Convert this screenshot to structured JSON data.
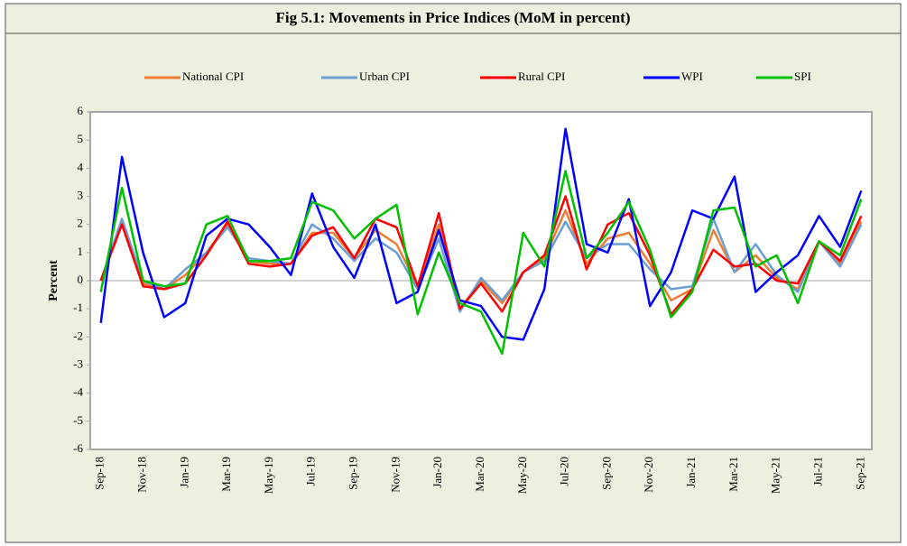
{
  "chart_data": {
    "type": "line",
    "title": "Fig 5.1: Movements in Price Indices (MoM in percent)",
    "y_label": "Percent",
    "categories": [
      "Sep-18",
      null,
      "Nov-18",
      null,
      "Jan-19",
      null,
      "Mar-19",
      null,
      "May-19",
      null,
      "Jul-19",
      null,
      "Sep-19",
      null,
      "Nov-19",
      null,
      "Jan-20",
      null,
      "Mar-20",
      null,
      "May-20",
      null,
      "Jul-20",
      null,
      "Sep-20",
      null,
      "Nov-20",
      null,
      "Jan-21",
      null,
      "Mar-21",
      null,
      "May-21",
      null,
      "Jul-21",
      null,
      "Sep-21"
    ],
    "series": [
      {
        "name": "National CPI",
        "color": "#ed7d31",
        "values": [
          0.0,
          2.1,
          -0.1,
          -0.3,
          0.2,
          1.0,
          2.0,
          0.7,
          0.6,
          0.6,
          1.7,
          1.7,
          0.8,
          1.8,
          1.3,
          -0.2,
          2.0,
          -1.0,
          0.0,
          -0.8,
          0.3,
          0.8,
          2.5,
          0.6,
          1.5,
          1.7,
          0.6,
          -0.7,
          -0.3,
          1.8,
          0.3,
          0.9,
          0.1,
          -0.3,
          1.4,
          0.6,
          2.1
        ]
      },
      {
        "name": "Urban CPI",
        "color": "#6b9fd4",
        "values": [
          0.0,
          2.2,
          0.0,
          -0.3,
          0.4,
          1.0,
          1.9,
          0.8,
          0.7,
          0.6,
          2.0,
          1.5,
          0.7,
          1.5,
          1.0,
          -0.3,
          1.5,
          -1.1,
          0.1,
          -0.7,
          0.3,
          0.7,
          2.1,
          0.8,
          1.3,
          1.3,
          0.4,
          -0.3,
          -0.2,
          2.2,
          0.3,
          1.3,
          0.2,
          -0.4,
          1.4,
          0.5,
          2.0
        ]
      },
      {
        "name": "Rural CPI",
        "color": "#ff0000",
        "values": [
          0.0,
          2.0,
          -0.2,
          -0.3,
          -0.1,
          0.9,
          2.1,
          0.6,
          0.5,
          0.6,
          1.6,
          1.9,
          0.8,
          2.2,
          1.9,
          -0.2,
          2.4,
          -1.0,
          -0.1,
          -1.1,
          0.3,
          0.9,
          3.0,
          0.4,
          2.0,
          2.4,
          0.9,
          -1.2,
          -0.3,
          1.1,
          0.5,
          0.6,
          0.0,
          -0.1,
          1.4,
          0.7,
          2.3
        ]
      },
      {
        "name": "WPI",
        "color": "#0000ff",
        "values": [
          -1.5,
          4.4,
          1.0,
          -1.3,
          -0.8,
          1.6,
          2.2,
          2.0,
          1.2,
          0.2,
          3.1,
          1.2,
          0.1,
          2.0,
          -0.8,
          -0.4,
          1.8,
          -0.7,
          -0.9,
          -2.0,
          -2.1,
          -0.3,
          5.4,
          1.3,
          1.0,
          2.9,
          -0.9,
          0.3,
          2.5,
          2.2,
          3.7,
          -0.4,
          0.3,
          0.9,
          2.3,
          1.2,
          3.2
        ]
      },
      {
        "name": "SPI",
        "color": "#00c000",
        "values": [
          -0.4,
          3.3,
          0.0,
          -0.2,
          -0.1,
          2.0,
          2.3,
          0.7,
          0.7,
          0.8,
          2.8,
          2.5,
          1.5,
          2.2,
          2.7,
          -1.2,
          1.0,
          -0.8,
          -1.1,
          -2.6,
          1.7,
          0.5,
          3.9,
          0.8,
          1.7,
          2.8,
          1.1,
          -1.3,
          -0.4,
          2.5,
          2.6,
          0.5,
          0.9,
          -0.8,
          1.4,
          0.9,
          2.9
        ]
      }
    ],
    "ylim": [
      -6,
      6
    ],
    "yticks": [
      -6,
      -5,
      -4,
      -3,
      -2,
      -1,
      0,
      1,
      2,
      3,
      4,
      5,
      6
    ],
    "grid": false,
    "legend": "top"
  }
}
